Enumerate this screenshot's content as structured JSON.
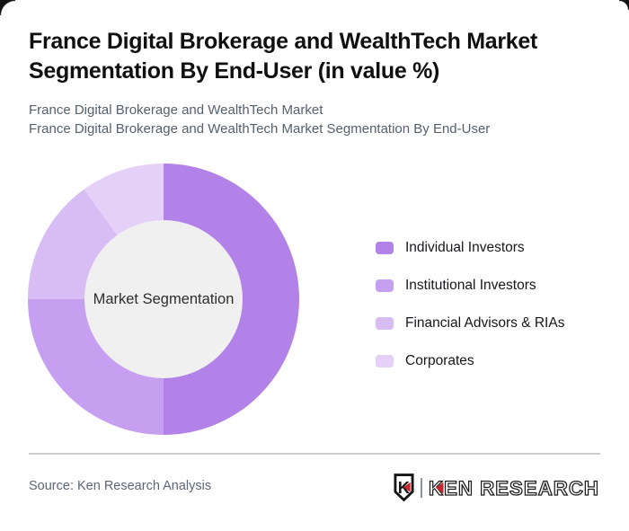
{
  "page": {
    "title_line1": "France Digital Brokerage and WealthTech Market",
    "title_line2": "Segmentation By End-User (in value %)",
    "subtitle_line1": "France Digital Brokerage and WealthTech Market",
    "subtitle_line2": "France Digital Brokerage and WealthTech Market Segmentation By End-User"
  },
  "chart_data": {
    "type": "pie",
    "donut": true,
    "title": "France Digital Brokerage and WealthTech Market Segmentation By End-User (in value %)",
    "center_label": "Market Segmentation",
    "categories": [
      "Individual Investors",
      "Institutional Investors",
      "Financial Advisors & RIAs",
      "Corporates"
    ],
    "values": [
      50,
      25,
      15,
      10
    ],
    "unit": "value %",
    "colors": [
      "#b382e8",
      "#c69ff0",
      "#d8bdf4",
      "#e5d0f8"
    ],
    "inner_circle_color": "#f0f0f0",
    "legend_position": "right",
    "start_angle_deg": 0,
    "direction": "clockwise"
  },
  "footer": {
    "source_text": "Source: Ken Research Analysis",
    "logo": {
      "shield_letter": "K",
      "brand_text": "KEN RESEARCH",
      "accent_color": "#c4242b",
      "text_color": "#1e1e1e",
      "separator_color": "#8d929b"
    }
  },
  "theme": {
    "card_background": "#ffffff",
    "outside_background": "#141414",
    "title_color": "#101010",
    "subtitle_color": "#555f6e",
    "source_color": "#5b6779",
    "divider_color": "#cccccc"
  }
}
